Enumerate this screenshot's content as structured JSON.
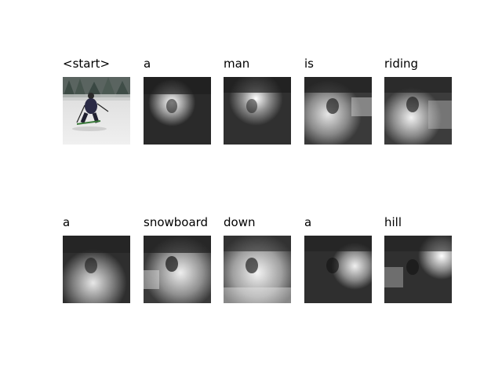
{
  "rows": [
    {
      "words": [
        "<start>",
        "a",
        "man",
        "is",
        "riding"
      ]
    },
    {
      "words": [
        "a",
        "snowboard",
        "down",
        "a",
        "hill"
      ]
    }
  ],
  "image_content": {
    "original": "skier in dark jacket on a snowy slope with trees in background",
    "attention_maps": "grayscale attention heatmaps overlaid on the image"
  }
}
